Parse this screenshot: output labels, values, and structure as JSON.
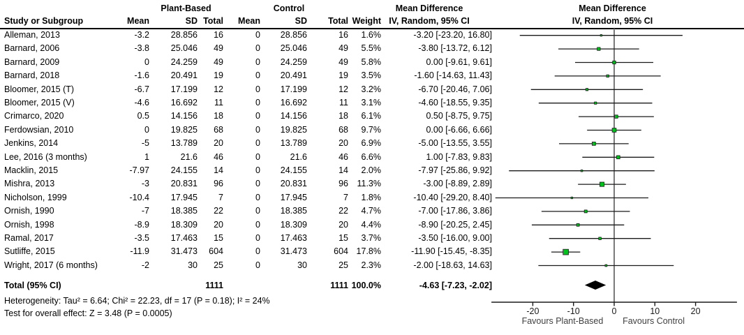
{
  "chart_data": {
    "type": "scatter",
    "subtype": "forest-plot-meta-analysis",
    "groups": {
      "experimental": "Plant-Based",
      "control": "Control"
    },
    "headers": {
      "study": "Study or Subgroup",
      "mean": "Mean",
      "sd": "SD",
      "total": "Total",
      "weight": "Weight",
      "md_left": "Mean Difference",
      "ci_left": "IV, Random, 95% CI",
      "md_right": "Mean Difference",
      "ci_right": "IV, Random, 95% CI"
    },
    "studies": [
      {
        "label": "Alleman, 2013",
        "exp_mean": "-3.2",
        "exp_sd": "28.856",
        "exp_total": "16",
        "ctrl_mean": "0",
        "ctrl_sd": "28.856",
        "ctrl_total": "16",
        "weight": "1.6%",
        "ci_text": "-3.20 [-23.20, 16.80]",
        "md": -3.2,
        "lo": -23.2,
        "hi": 16.8,
        "weight_value": 1.6
      },
      {
        "label": "Barnard, 2006",
        "exp_mean": "-3.8",
        "exp_sd": "25.046",
        "exp_total": "49",
        "ctrl_mean": "0",
        "ctrl_sd": "25.046",
        "ctrl_total": "49",
        "weight": "5.5%",
        "ci_text": "-3.80 [-13.72, 6.12]",
        "md": -3.8,
        "lo": -13.72,
        "hi": 6.12,
        "weight_value": 5.5
      },
      {
        "label": "Barnard, 2009",
        "exp_mean": "0",
        "exp_sd": "24.259",
        "exp_total": "49",
        "ctrl_mean": "0",
        "ctrl_sd": "24.259",
        "ctrl_total": "49",
        "weight": "5.8%",
        "ci_text": "0.00 [-9.61, 9.61]",
        "md": 0,
        "lo": -9.61,
        "hi": 9.61,
        "weight_value": 5.8
      },
      {
        "label": "Barnard, 2018",
        "exp_mean": "-1.6",
        "exp_sd": "20.491",
        "exp_total": "19",
        "ctrl_mean": "0",
        "ctrl_sd": "20.491",
        "ctrl_total": "19",
        "weight": "3.5%",
        "ci_text": "-1.60 [-14.63, 11.43]",
        "md": -1.6,
        "lo": -14.63,
        "hi": 11.43,
        "weight_value": 3.5
      },
      {
        "label": "Bloomer, 2015 (T)",
        "exp_mean": "-6.7",
        "exp_sd": "17.199",
        "exp_total": "12",
        "ctrl_mean": "0",
        "ctrl_sd": "17.199",
        "ctrl_total": "12",
        "weight": "3.2%",
        "ci_text": "-6.70 [-20.46, 7.06]",
        "md": -6.7,
        "lo": -20.46,
        "hi": 7.06,
        "weight_value": 3.2
      },
      {
        "label": "Bloomer, 2015 (V)",
        "exp_mean": "-4.6",
        "exp_sd": "16.692",
        "exp_total": "11",
        "ctrl_mean": "0",
        "ctrl_sd": "16.692",
        "ctrl_total": "11",
        "weight": "3.1%",
        "ci_text": "-4.60 [-18.55, 9.35]",
        "md": -4.6,
        "lo": -18.55,
        "hi": 9.35,
        "weight_value": 3.1
      },
      {
        "label": "Crimarco, 2020",
        "exp_mean": "0.5",
        "exp_sd": "14.156",
        "exp_total": "18",
        "ctrl_mean": "0",
        "ctrl_sd": "14.156",
        "ctrl_total": "18",
        "weight": "6.1%",
        "ci_text": "0.50 [-8.75, 9.75]",
        "md": 0.5,
        "lo": -8.75,
        "hi": 9.75,
        "weight_value": 6.1
      },
      {
        "label": "Ferdowsian, 2010",
        "exp_mean": "0",
        "exp_sd": "19.825",
        "exp_total": "68",
        "ctrl_mean": "0",
        "ctrl_sd": "19.825",
        "ctrl_total": "68",
        "weight": "9.7%",
        "ci_text": "0.00 [-6.66, 6.66]",
        "md": 0,
        "lo": -6.66,
        "hi": 6.66,
        "weight_value": 9.7
      },
      {
        "label": "Jenkins, 2014",
        "exp_mean": "-5",
        "exp_sd": "13.789",
        "exp_total": "20",
        "ctrl_mean": "0",
        "ctrl_sd": "13.789",
        "ctrl_total": "20",
        "weight": "6.9%",
        "ci_text": "-5.00 [-13.55, 3.55]",
        "md": -5,
        "lo": -13.55,
        "hi": 3.55,
        "weight_value": 6.9
      },
      {
        "label": "Lee, 2016 (3 months)",
        "exp_mean": "1",
        "exp_sd": "21.6",
        "exp_total": "46",
        "ctrl_mean": "0",
        "ctrl_sd": "21.6",
        "ctrl_total": "46",
        "weight": "6.6%",
        "ci_text": "1.00 [-7.83, 9.83]",
        "md": 1,
        "lo": -7.83,
        "hi": 9.83,
        "weight_value": 6.6
      },
      {
        "label": "Macklin, 2015",
        "exp_mean": "-7.97",
        "exp_sd": "24.155",
        "exp_total": "14",
        "ctrl_mean": "0",
        "ctrl_sd": "24.155",
        "ctrl_total": "14",
        "weight": "2.0%",
        "ci_text": "-7.97 [-25.86, 9.92]",
        "md": -7.97,
        "lo": -25.86,
        "hi": 9.92,
        "weight_value": 2.0
      },
      {
        "label": "Mishra, 2013",
        "exp_mean": "-3",
        "exp_sd": "20.831",
        "exp_total": "96",
        "ctrl_mean": "0",
        "ctrl_sd": "20.831",
        "ctrl_total": "96",
        "weight": "11.3%",
        "ci_text": "-3.00 [-8.89, 2.89]",
        "md": -3,
        "lo": -8.89,
        "hi": 2.89,
        "weight_value": 11.3
      },
      {
        "label": "Nicholson, 1999",
        "exp_mean": "-10.4",
        "exp_sd": "17.945",
        "exp_total": "7",
        "ctrl_mean": "0",
        "ctrl_sd": "17.945",
        "ctrl_total": "7",
        "weight": "1.8%",
        "ci_text": "-10.40 [-29.20, 8.40]",
        "md": -10.4,
        "lo": -29.2,
        "hi": 8.4,
        "weight_value": 1.8
      },
      {
        "label": "Ornish, 1990",
        "exp_mean": "-7",
        "exp_sd": "18.385",
        "exp_total": "22",
        "ctrl_mean": "0",
        "ctrl_sd": "18.385",
        "ctrl_total": "22",
        "weight": "4.7%",
        "ci_text": "-7.00 [-17.86, 3.86]",
        "md": -7,
        "lo": -17.86,
        "hi": 3.86,
        "weight_value": 4.7
      },
      {
        "label": "Ornish, 1998",
        "exp_mean": "-8.9",
        "exp_sd": "18.309",
        "exp_total": "20",
        "ctrl_mean": "0",
        "ctrl_sd": "18.309",
        "ctrl_total": "20",
        "weight": "4.4%",
        "ci_text": "-8.90 [-20.25, 2.45]",
        "md": -8.9,
        "lo": -20.25,
        "hi": 2.45,
        "weight_value": 4.4
      },
      {
        "label": "Ramal, 2017",
        "exp_mean": "-3.5",
        "exp_sd": "17.463",
        "exp_total": "15",
        "ctrl_mean": "0",
        "ctrl_sd": "17.463",
        "ctrl_total": "15",
        "weight": "3.7%",
        "ci_text": "-3.50 [-16.00, 9.00]",
        "md": -3.5,
        "lo": -16.0,
        "hi": 9.0,
        "weight_value": 3.7
      },
      {
        "label": "Sutliffe, 2015",
        "exp_mean": "-11.9",
        "exp_sd": "31.473",
        "exp_total": "604",
        "ctrl_mean": "0",
        "ctrl_sd": "31.473",
        "ctrl_total": "604",
        "weight": "17.8%",
        "ci_text": "-11.90 [-15.45, -8.35]",
        "md": -11.9,
        "lo": -15.45,
        "hi": -8.35,
        "weight_value": 17.8
      },
      {
        "label": "Wright, 2017 (6 months)",
        "exp_mean": "-2",
        "exp_sd": "30",
        "exp_total": "25",
        "ctrl_mean": "0",
        "ctrl_sd": "30",
        "ctrl_total": "25",
        "weight": "2.3%",
        "ci_text": "-2.00 [-18.63, 14.63]",
        "md": -2,
        "lo": -18.63,
        "hi": 14.63,
        "weight_value": 2.3
      }
    ],
    "total": {
      "label": "Total (95% CI)",
      "exp_total": "1111",
      "ctrl_total": "1111",
      "weight": "100.0%",
      "ci_text": "-4.63 [-7.23, -2.02]",
      "md": -4.63,
      "lo": -7.23,
      "hi": -2.02
    },
    "footer": {
      "heterogeneity": "Heterogeneity: Tau² = 6.64; Chi² = 22.23, df = 17 (P = 0.18); I² = 24%",
      "overall_effect": "Test for overall effect: Z = 3.48 (P = 0.0005)"
    },
    "axis": {
      "ticks": [
        -20,
        -10,
        0,
        10,
        20
      ],
      "tick_labels": [
        "-20",
        "-10",
        "0",
        "10",
        "20"
      ],
      "range": [
        -30,
        30
      ],
      "favours_left": "Favours Plant-Based",
      "favours_right": "Favours Control"
    },
    "colors": {
      "marker_fill": "#00c21d",
      "marker_stroke": "#1a1a1a",
      "diamond": "#000000",
      "ci_line": "#1a1a1a",
      "zero_line": "#7a7a7a",
      "axis": "#1a1a1a",
      "axis_label": "#404040"
    }
  }
}
